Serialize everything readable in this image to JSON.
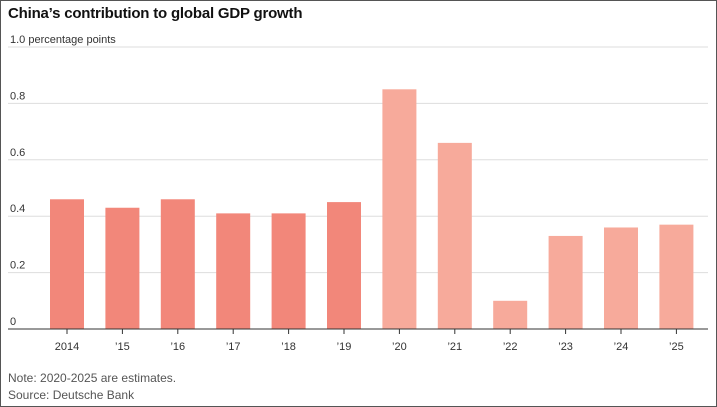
{
  "title": "China’s contribution to global GDP growth",
  "note": "Note: 2020-2025 are estimates.",
  "source": "Source: Deutsche Bank",
  "chart_data": {
    "type": "bar",
    "title": "China’s contribution to global GDP growth",
    "ylabel": "percentage points",
    "ylim": [
      0,
      1.0
    ],
    "yticks": [
      0,
      0.2,
      0.4,
      0.6,
      0.8,
      1.0
    ],
    "ytick_labels": [
      "0",
      "0.2",
      "0.4",
      "0.6",
      "0.8",
      "1.0 percentage points"
    ],
    "categories": [
      "2014",
      "’15",
      "’16",
      "’17",
      "’18",
      "’19",
      "’20",
      "’21",
      "’22",
      "’23",
      "’24",
      "’25"
    ],
    "values": [
      0.46,
      0.43,
      0.46,
      0.41,
      0.41,
      0.45,
      0.85,
      0.66,
      0.1,
      0.33,
      0.36,
      0.37
    ],
    "estimated": [
      false,
      false,
      false,
      false,
      false,
      false,
      true,
      true,
      true,
      true,
      true,
      true
    ],
    "colors": {
      "actual": "#f2877a",
      "estimate": "#f7aa9b",
      "grid": "#dddddd",
      "axis": "#333333"
    },
    "grid": true,
    "legend": "none"
  }
}
